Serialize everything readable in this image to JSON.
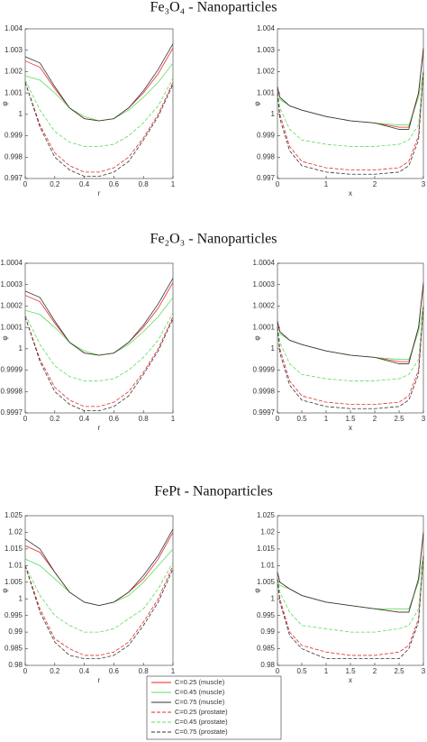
{
  "section_titles": [
    "Fe₃O₄ - Nanoparticles",
    "Fe₂O₃ - Nanoparticles",
    "FePt - Nanoparticles"
  ],
  "chart_data": [
    {
      "type": "line",
      "xlabel": "r",
      "ylabel": "φ",
      "x": [
        0,
        0.1,
        0.2,
        0.3,
        0.4,
        0.5,
        0.6,
        0.7,
        0.8,
        0.9,
        1
      ],
      "xlim": [
        0,
        1
      ],
      "xticks": [
        0,
        0.2,
        0.4,
        0.6,
        0.8,
        1
      ],
      "ylim": [
        0.997,
        1.004
      ],
      "yticks": [
        0.997,
        0.998,
        0.999,
        1,
        1.001,
        1.002,
        1.003,
        1.004
      ],
      "series": [
        {
          "name": "C=0.25 (muscle)",
          "color": "#e8262a",
          "style": "solid",
          "values": [
            1.0025,
            1.0022,
            1.0012,
            1.0003,
            0.9998,
            0.9997,
            0.9998,
            1.0003,
            1.001,
            1.0019,
            1.0031
          ]
        },
        {
          "name": "C=0.45 (muscle)",
          "color": "#5edc5e",
          "style": "solid",
          "values": [
            1.0018,
            1.0016,
            1.001,
            1.0003,
            0.9999,
            0.9997,
            0.9998,
            1.0002,
            1.0008,
            1.0015,
            1.0024
          ]
        },
        {
          "name": "C=0.75 (muscle)",
          "color": "#333333",
          "style": "solid",
          "values": [
            1.0027,
            1.0024,
            1.0013,
            1.0003,
            0.9998,
            0.9997,
            0.9998,
            1.0003,
            1.0011,
            1.0021,
            1.0033
          ]
        },
        {
          "name": "C=0.25 (prostate)",
          "color": "#e8262a",
          "style": "dashed",
          "values": [
            1.0015,
            0.9995,
            0.9982,
            0.9976,
            0.9973,
            0.9973,
            0.9975,
            0.998,
            0.9989,
            1,
            1.0015
          ]
        },
        {
          "name": "C=0.45 (prostate)",
          "color": "#5edc5e",
          "style": "dashed",
          "values": [
            1.0016,
            1.0002,
            0.9992,
            0.9987,
            0.9985,
            0.9985,
            0.9986,
            0.999,
            0.9996,
            1.0004,
            1.0017
          ]
        },
        {
          "name": "C=0.75 (prostate)",
          "color": "#333333",
          "style": "dashed",
          "values": [
            1.0015,
            0.9994,
            0.998,
            0.9974,
            0.9971,
            0.9971,
            0.9973,
            0.9978,
            0.9988,
            0.9999,
            1.0014
          ]
        }
      ]
    },
    {
      "type": "line",
      "xlabel": "x",
      "ylabel": "φ",
      "x": [
        0,
        0.05,
        0.25,
        0.5,
        1,
        1.5,
        2,
        2.5,
        2.7,
        2.9,
        3
      ],
      "xlim": [
        0,
        3
      ],
      "xticks": [
        0,
        1,
        2,
        3
      ],
      "ylim": [
        0.997,
        1.004
      ],
      "yticks": [
        0.997,
        0.998,
        0.999,
        1,
        1.001,
        1.002,
        1.003,
        1.004
      ],
      "series": [
        {
          "name": "C=0.25 (muscle)",
          "color": "#e8262a",
          "style": "solid",
          "values": [
            1.0012,
            1.0008,
            1.0004,
            1.0002,
            0.9999,
            0.9997,
            0.9996,
            0.9994,
            0.9994,
            1.001,
            1.003
          ]
        },
        {
          "name": "C=0.45 (muscle)",
          "color": "#5edc5e",
          "style": "solid",
          "values": [
            1.0008,
            1.0007,
            1.0004,
            1.0002,
            0.9999,
            0.9997,
            0.9996,
            0.9995,
            0.9995,
            1.0008,
            1.002
          ]
        },
        {
          "name": "C=0.75 (muscle)",
          "color": "#333333",
          "style": "solid",
          "values": [
            1.0013,
            1.0008,
            1.0004,
            1.0002,
            0.9999,
            0.9997,
            0.9996,
            0.9993,
            0.9993,
            1.001,
            1.0031
          ]
        },
        {
          "name": "C=0.25 (prostate)",
          "color": "#e8262a",
          "style": "dashed",
          "values": [
            1.001,
            1,
            0.9985,
            0.9978,
            0.9975,
            0.9974,
            0.9974,
            0.9975,
            0.9978,
            0.999,
            1.002
          ]
        },
        {
          "name": "C=0.45 (prostate)",
          "color": "#5edc5e",
          "style": "dashed",
          "values": [
            1.001,
            1.0003,
            0.9993,
            0.9988,
            0.9986,
            0.9985,
            0.9985,
            0.9986,
            0.9988,
            0.9995,
            1.002
          ]
        },
        {
          "name": "C=0.75 (prostate)",
          "color": "#333333",
          "style": "dashed",
          "values": [
            1.001,
            0.9998,
            0.9983,
            0.9976,
            0.9973,
            0.9972,
            0.9972,
            0.9973,
            0.9976,
            0.9988,
            1.002
          ]
        }
      ]
    },
    {
      "type": "line",
      "xlabel": "r",
      "ylabel": "φ",
      "x": [
        0,
        0.1,
        0.2,
        0.3,
        0.4,
        0.5,
        0.6,
        0.7,
        0.8,
        0.9,
        1
      ],
      "xlim": [
        0,
        1
      ],
      "xticks": [
        0,
        0.2,
        0.4,
        0.6,
        0.8,
        1
      ],
      "ylim": [
        0.9997,
        1.0004
      ],
      "yticks": [
        0.9997,
        0.9998,
        0.9999,
        1,
        1.0001,
        1.0002,
        1.0003,
        1.0004
      ],
      "series": [
        {
          "name": "C=0.25 (muscle)",
          "color": "#e8262a",
          "style": "solid",
          "values": [
            1.00025,
            1.00022,
            1.00012,
            1.00003,
            0.99998,
            0.99997,
            0.99998,
            1.00003,
            1.0001,
            1.00019,
            1.00031
          ]
        },
        {
          "name": "C=0.45 (muscle)",
          "color": "#5edc5e",
          "style": "solid",
          "values": [
            1.00018,
            1.00016,
            1.0001,
            1.00003,
            0.99999,
            0.99997,
            0.99998,
            1.00002,
            1.00008,
            1.00015,
            1.00024
          ]
        },
        {
          "name": "C=0.75 (muscle)",
          "color": "#333333",
          "style": "solid",
          "values": [
            1.00027,
            1.00024,
            1.00013,
            1.00003,
            0.99998,
            0.99997,
            0.99998,
            1.00003,
            1.00011,
            1.00021,
            1.00033
          ]
        },
        {
          "name": "C=0.25 (prostate)",
          "color": "#e8262a",
          "style": "dashed",
          "values": [
            1.00015,
            0.99995,
            0.99982,
            0.99976,
            0.99973,
            0.99973,
            0.99975,
            0.9998,
            0.99989,
            1,
            1.00015
          ]
        },
        {
          "name": "C=0.45 (prostate)",
          "color": "#5edc5e",
          "style": "dashed",
          "values": [
            1.00016,
            1.00002,
            0.99992,
            0.99987,
            0.99985,
            0.99985,
            0.99986,
            0.9999,
            0.99996,
            1.00004,
            1.00017
          ]
        },
        {
          "name": "C=0.75 (prostate)",
          "color": "#333333",
          "style": "dashed",
          "values": [
            1.00015,
            0.99994,
            0.9998,
            0.99974,
            0.99971,
            0.99971,
            0.99973,
            0.99978,
            0.99988,
            0.99999,
            1.00014
          ]
        }
      ]
    },
    {
      "type": "line",
      "xlabel": "x",
      "ylabel": "φ",
      "x": [
        0,
        0.05,
        0.25,
        0.5,
        1,
        1.5,
        2,
        2.5,
        2.7,
        2.9,
        3
      ],
      "xlim": [
        0,
        3
      ],
      "xticks": [
        0,
        0.5,
        1,
        1.5,
        2,
        2.5,
        3
      ],
      "ylim": [
        0.9997,
        1.0004
      ],
      "yticks": [
        0.9997,
        0.9998,
        0.9999,
        1,
        1.0001,
        1.0002,
        1.0003,
        1.0004
      ],
      "series": [
        {
          "name": "C=0.25 (muscle)",
          "color": "#e8262a",
          "style": "solid",
          "values": [
            1.00012,
            1.00008,
            1.00004,
            1.00002,
            0.99999,
            0.99997,
            0.99996,
            0.99994,
            0.99994,
            1.0001,
            1.0003
          ]
        },
        {
          "name": "C=0.45 (muscle)",
          "color": "#5edc5e",
          "style": "solid",
          "values": [
            1.00008,
            1.00007,
            1.00004,
            1.00002,
            0.99999,
            0.99997,
            0.99996,
            0.99995,
            0.99995,
            1.00008,
            1.0002
          ]
        },
        {
          "name": "C=0.75 (muscle)",
          "color": "#333333",
          "style": "solid",
          "values": [
            1.00013,
            1.00008,
            1.00004,
            1.00002,
            0.99999,
            0.99997,
            0.99996,
            0.99993,
            0.99993,
            1.0001,
            1.00031
          ]
        },
        {
          "name": "C=0.25 (prostate)",
          "color": "#e8262a",
          "style": "dashed",
          "values": [
            1.0001,
            1,
            0.99985,
            0.99978,
            0.99975,
            0.99974,
            0.99974,
            0.99975,
            0.99978,
            0.9999,
            1.0002
          ]
        },
        {
          "name": "C=0.45 (prostate)",
          "color": "#5edc5e",
          "style": "dashed",
          "values": [
            1.0001,
            1.00003,
            0.99993,
            0.99988,
            0.99986,
            0.99985,
            0.99985,
            0.99986,
            0.99988,
            0.99995,
            1.0002
          ]
        },
        {
          "name": "C=0.75 (prostate)",
          "color": "#333333",
          "style": "dashed",
          "values": [
            1.0001,
            0.99998,
            0.99983,
            0.99976,
            0.99973,
            0.99972,
            0.99972,
            0.99973,
            0.99976,
            0.99988,
            1.0002
          ]
        }
      ]
    },
    {
      "type": "line",
      "xlabel": "r",
      "ylabel": "φ",
      "x": [
        0,
        0.1,
        0.2,
        0.3,
        0.4,
        0.5,
        0.6,
        0.7,
        0.8,
        0.9,
        1
      ],
      "xlim": [
        0,
        1
      ],
      "xticks": [
        0,
        0.2,
        0.4,
        0.6,
        0.8,
        1
      ],
      "ylim": [
        0.98,
        1.025
      ],
      "yticks": [
        0.98,
        0.985,
        0.99,
        0.995,
        1,
        1.005,
        1.01,
        1.015,
        1.02,
        1.025
      ],
      "series": [
        {
          "name": "C=0.25 (muscle)",
          "color": "#e8262a",
          "style": "solid",
          "values": [
            1.016,
            1.014,
            1.008,
            1.002,
            0.999,
            0.998,
            0.999,
            1.002,
            1.006,
            1.012,
            1.02
          ]
        },
        {
          "name": "C=0.45 (muscle)",
          "color": "#5edc5e",
          "style": "solid",
          "values": [
            1.012,
            1.01,
            1.006,
            1.002,
            0.999,
            0.998,
            0.999,
            1.001,
            1.005,
            1.01,
            1.015
          ]
        },
        {
          "name": "C=0.75 (muscle)",
          "color": "#333333",
          "style": "solid",
          "values": [
            1.018,
            1.015,
            1.008,
            1.002,
            0.999,
            0.998,
            0.999,
            1.002,
            1.007,
            1.013,
            1.021
          ]
        },
        {
          "name": "C=0.25 (prostate)",
          "color": "#e8262a",
          "style": "dashed",
          "values": [
            1.01,
            0.997,
            0.988,
            0.985,
            0.983,
            0.983,
            0.984,
            0.987,
            0.993,
            1,
            1.01
          ]
        },
        {
          "name": "C=0.45 (prostate)",
          "color": "#5edc5e",
          "style": "dashed",
          "values": [
            1.01,
            1.001,
            0.995,
            0.992,
            0.99,
            0.99,
            0.991,
            0.994,
            0.997,
            1.003,
            1.011
          ]
        },
        {
          "name": "C=0.75 (prostate)",
          "color": "#333333",
          "style": "dashed",
          "values": [
            1.01,
            0.996,
            0.987,
            0.983,
            0.982,
            0.982,
            0.983,
            0.986,
            0.992,
            0.999,
            1.009
          ]
        }
      ]
    },
    {
      "type": "line",
      "xlabel": "x",
      "ylabel": "φ",
      "x": [
        0,
        0.05,
        0.25,
        0.5,
        1,
        1.5,
        2,
        2.5,
        2.7,
        2.9,
        3
      ],
      "xlim": [
        0,
        3
      ],
      "xticks": [
        0,
        0.5,
        1,
        1.5,
        2,
        2.5,
        3
      ],
      "ylim": [
        0.98,
        1.025
      ],
      "yticks": [
        0.98,
        0.985,
        0.99,
        0.995,
        1,
        1.005,
        1.01,
        1.015,
        1.02,
        1.025
      ],
      "series": [
        {
          "name": "C=0.25 (muscle)",
          "color": "#e8262a",
          "style": "solid",
          "values": [
            1.008,
            1.005,
            1.003,
            1.001,
            0.999,
            0.998,
            0.997,
            0.996,
            0.996,
            1.006,
            1.02
          ]
        },
        {
          "name": "C=0.45 (muscle)",
          "color": "#5edc5e",
          "style": "solid",
          "values": [
            1.005,
            1.004,
            1.003,
            1.001,
            0.999,
            0.998,
            0.997,
            0.997,
            0.997,
            1.005,
            1.013
          ]
        },
        {
          "name": "C=0.75 (muscle)",
          "color": "#333333",
          "style": "solid",
          "values": [
            1.008,
            1.005,
            1.003,
            1.001,
            0.999,
            0.998,
            0.997,
            0.996,
            0.996,
            1.006,
            1.02
          ]
        },
        {
          "name": "C=0.25 (prostate)",
          "color": "#e8262a",
          "style": "dashed",
          "values": [
            1.006,
            1,
            0.99,
            0.986,
            0.984,
            0.983,
            0.983,
            0.984,
            0.986,
            0.994,
            1.013
          ]
        },
        {
          "name": "C=0.45 (prostate)",
          "color": "#5edc5e",
          "style": "dashed",
          "values": [
            1.006,
            1.002,
            0.996,
            0.992,
            0.991,
            0.99,
            0.99,
            0.991,
            0.992,
            0.997,
            1.013
          ]
        },
        {
          "name": "C=0.75 (prostate)",
          "color": "#333333",
          "style": "dashed",
          "values": [
            1.006,
            0.999,
            0.989,
            0.985,
            0.982,
            0.982,
            0.982,
            0.982,
            0.985,
            0.993,
            1.013
          ]
        }
      ]
    }
  ]
}
